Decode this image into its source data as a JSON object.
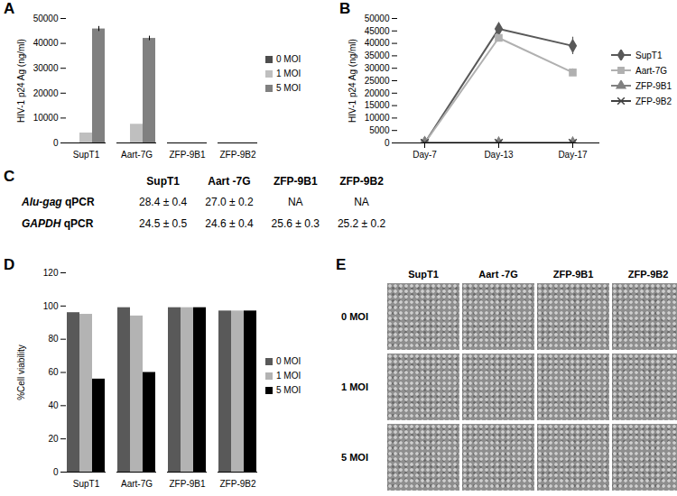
{
  "chart_data": [
    {
      "panel": "A",
      "type": "bar",
      "categories": [
        "SupT1",
        "Aart-7G",
        "ZFP-9B1",
        "ZFP-9B2"
      ],
      "ylabel": "HIV-1 p24 Ag (ng/ml)",
      "ylim": [
        0,
        50000
      ],
      "yticks": [
        0,
        10000,
        20000,
        30000,
        40000,
        50000
      ],
      "grid": false,
      "legend": "right",
      "series": [
        {
          "name": "0 MOI",
          "color": "#4d4d4d",
          "values": [
            0,
            0,
            0,
            0
          ]
        },
        {
          "name": "1 MOI",
          "color": "#bfbfbf",
          "values": [
            4000,
            7500,
            0,
            0
          ]
        },
        {
          "name": "5 MOI",
          "color": "#808080",
          "values": [
            45800,
            42000,
            0,
            0
          ],
          "errors": [
            1000,
            900,
            0,
            0
          ]
        }
      ]
    },
    {
      "panel": "B",
      "type": "line",
      "categories": [
        "Day-7",
        "Day-13",
        "Day-17"
      ],
      "ylabel": "HIV-1 p24 Ag (ng/ml)",
      "ylim": [
        0,
        50000
      ],
      "yticks": [
        0,
        5000,
        10000,
        15000,
        20000,
        25000,
        30000,
        35000,
        40000,
        45000,
        50000
      ],
      "grid": false,
      "legend": "right",
      "series": [
        {
          "name": "SupT1",
          "color": "#595959",
          "marker": "diamond",
          "values": [
            0,
            45800,
            39000
          ],
          "errors": [
            0,
            1000,
            3500
          ]
        },
        {
          "name": "Aart-7G",
          "color": "#b0b0b0",
          "marker": "square",
          "values": [
            0,
            42200,
            28300
          ],
          "errors": [
            0,
            1000,
            1500
          ]
        },
        {
          "name": "ZFP-9B1",
          "color": "#808080",
          "marker": "triangle",
          "values": [
            0,
            0,
            0
          ]
        },
        {
          "name": "ZFP-9B2",
          "color": "#404040",
          "marker": "times",
          "values": [
            0,
            0,
            0
          ]
        }
      ]
    },
    {
      "panel": "D",
      "type": "bar",
      "categories": [
        "SupT1",
        "Aart-7G",
        "ZFP-9B1",
        "ZFP-9B2"
      ],
      "ylabel": "%Cell viability",
      "ylim": [
        0,
        120
      ],
      "yticks": [
        0,
        20,
        40,
        60,
        80,
        100,
        120
      ],
      "grid": false,
      "legend": "right",
      "series": [
        {
          "name": "0 MOI",
          "color": "#595959",
          "values": [
            96,
            99,
            99,
            97
          ]
        },
        {
          "name": "1 MOI",
          "color": "#b3b3b3",
          "values": [
            95,
            94,
            99,
            97
          ]
        },
        {
          "name": "5 MOI",
          "color": "#000000",
          "values": [
            56,
            60,
            99,
            97
          ]
        }
      ]
    }
  ],
  "table": {
    "panel": "C",
    "columns": [
      "SupT1",
      "Aart -7G",
      "ZFP-9B1",
      "ZFP-9B2"
    ],
    "rows": [
      [
        "Alu-gag qPCR",
        "28.4 ± 0.4",
        "27.0 ± 0.2",
        "NA",
        "NA"
      ],
      [
        "GAPDH qPCR",
        "24.5 ± 0.5",
        "24.6 ± 0.4",
        "25.6 ± 0.3",
        "25.2 ± 0.2"
      ]
    ]
  },
  "micrographs": {
    "panel": "E",
    "columns": [
      "SupT1",
      "Aart -7G",
      "ZFP-9B1",
      "ZFP-9B2"
    ],
    "rows": [
      "0 MOI",
      "1 MOI",
      "5 MOI"
    ]
  }
}
